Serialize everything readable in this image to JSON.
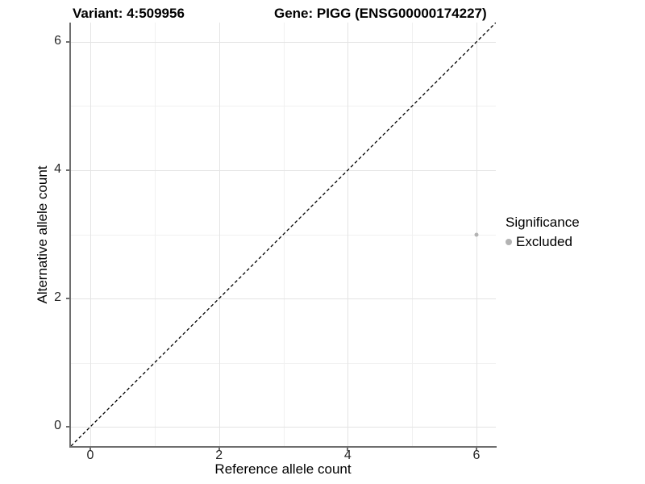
{
  "header": {
    "variant_title": "Variant: 4:509956",
    "gene_title": "Gene: PIGG (ENSG00000174227)"
  },
  "chart_data": {
    "type": "scatter",
    "title": "Variant: 4:509956   Gene: PIGG (ENSG00000174227)",
    "xlabel": "Reference allele count",
    "ylabel": "Alternative allele count",
    "xlim": [
      -0.3,
      6.3
    ],
    "ylim": [
      -0.3,
      6.3
    ],
    "x_ticks": [
      0,
      2,
      4,
      6
    ],
    "y_ticks": [
      0,
      2,
      4,
      6
    ],
    "x_minor_ticks": [
      1,
      3,
      5
    ],
    "y_minor_ticks": [
      1,
      3,
      5
    ],
    "grid": true,
    "background": "#ffffff",
    "identity_line": {
      "style": "dashed",
      "color": "#000000",
      "from": [
        -0.3,
        -0.3
      ],
      "to": [
        6.3,
        6.3
      ]
    },
    "series": [
      {
        "name": "Excluded",
        "color": "#b3b3b3",
        "point_size": 5,
        "points": [
          {
            "x": 6,
            "y": 3
          }
        ]
      }
    ],
    "legend": {
      "title": "Significance",
      "position": "right",
      "items": [
        {
          "label": "Excluded",
          "color": "#b3b3b3"
        }
      ]
    },
    "colors": {
      "axis_line": "#6e6e6e",
      "major_grid": "#e4e4e4",
      "minor_grid": "#f0f0f0",
      "tick_text": "#262626"
    }
  }
}
